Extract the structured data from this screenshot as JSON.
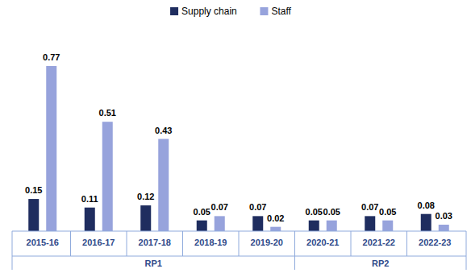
{
  "chart_data": {
    "type": "bar",
    "categories": [
      "2015-16",
      "2016-17",
      "2017-18",
      "2018-19",
      "2019-20",
      "2020-21",
      "2021-22",
      "2022-23"
    ],
    "series": [
      {
        "name": "Supply chain",
        "color": "#1f2d5f",
        "values": [
          0.15,
          0.11,
          0.12,
          0.05,
          0.07,
          0.05,
          0.07,
          0.08
        ]
      },
      {
        "name": "Staff",
        "color": "#97a3dc",
        "values": [
          0.77,
          0.51,
          0.43,
          0.07,
          0.02,
          0.05,
          0.05,
          0.03
        ]
      }
    ],
    "ylim": [
      0,
      0.8
    ],
    "data_labels": true,
    "tick_labels": "x",
    "legend": "top",
    "grid": false,
    "groups": [
      {
        "label": "RP1",
        "categories": [
          "2015-16",
          "2016-17",
          "2017-18",
          "2018-19",
          "2019-20"
        ]
      },
      {
        "label": "RP2",
        "categories": [
          "2020-21",
          "2021-22",
          "2022-23"
        ]
      }
    ]
  }
}
